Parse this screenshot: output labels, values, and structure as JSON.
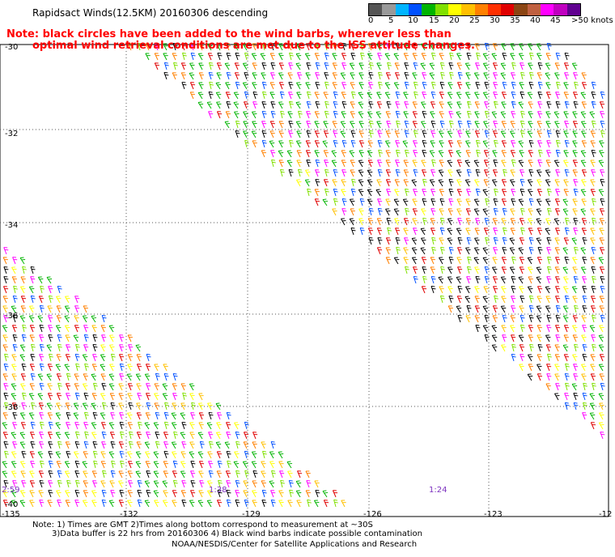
{
  "header": {
    "title": "Rapidsact Winds(12.5KM) 20160306 descending",
    "note_line1": "Note: black circles have been added to the wind barbs, wherever less than",
    "note_line2": "optimal wind retrieval conditions are met due to the ISS attitude changes."
  },
  "colorbar": {
    "colors": [
      "#555555",
      "#999999",
      "#00b4ff",
      "#0050ff",
      "#00b400",
      "#80e000",
      "#ffff00",
      "#ffc000",
      "#ff8000",
      "#ff3000",
      "#e00000",
      "#8b4513",
      "#c06040",
      "#ff00ff",
      "#c000c0",
      "#600090"
    ],
    "labels": [
      "0",
      "5",
      "10",
      "15",
      "20",
      "25",
      "30",
      "35",
      "40",
      "45",
      ">50 knots"
    ]
  },
  "axes": {
    "lat_labels": [
      "-30",
      "-32",
      "-34",
      "-36",
      "-38",
      "-40"
    ],
    "lon_labels": [
      "-135",
      "-132",
      "-129",
      "-126",
      "-123",
      "-12"
    ]
  },
  "time_labels": [
    "2:59",
    "1:38",
    "1:24"
  ],
  "footer": {
    "line1": "Note: 1) Times are GMT 2)Times along bottom correspond to measurement at ~30S",
    "line2": "3)Data buffer is 22 hrs from 20160306 4) Black wind barbs indicate possible contamination",
    "line3": "NOAA/NESDIS/Center for Satellite Applications and Research"
  },
  "icons": {
    "wind_barb": "wind-barb-icon"
  }
}
